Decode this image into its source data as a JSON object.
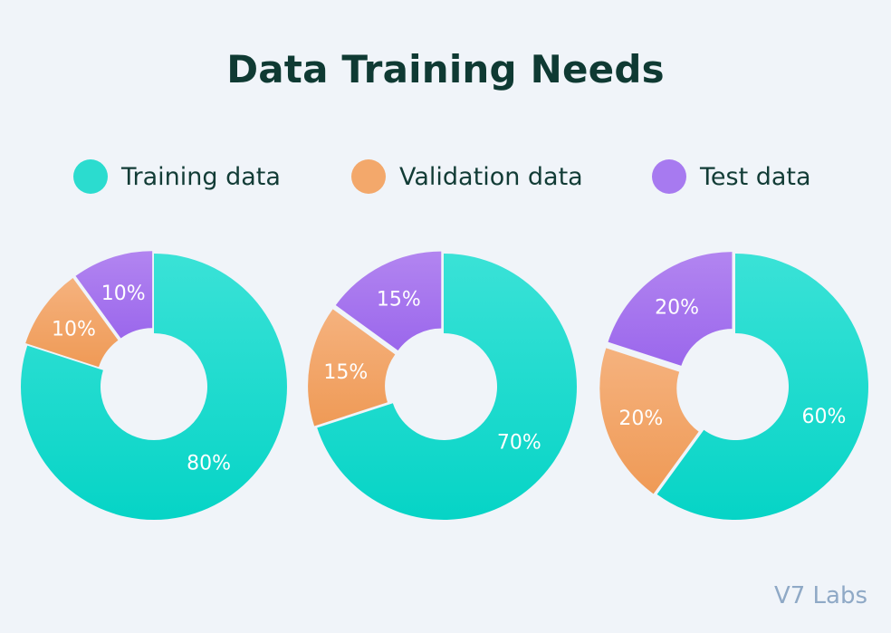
{
  "title": "Data Training Needs",
  "watermark": "V7 Labs",
  "colors": {
    "training": [
      "#3ae2d7",
      "#06d4c6"
    ],
    "validation": [
      "#f5b27e",
      "#ef9a56"
    ],
    "test": [
      "#b285f0",
      "#9b67ec"
    ],
    "background": "#f0f4f9",
    "title": "#0f3a33"
  },
  "legend": [
    {
      "label": "Training data",
      "color": "#2bdccf"
    },
    {
      "label": "Validation data",
      "color": "#f3a86b"
    },
    {
      "label": "Test data",
      "color": "#a77af0"
    }
  ],
  "chart_data": [
    {
      "type": "pie",
      "donut": true,
      "categories": [
        "Training data",
        "Validation data",
        "Test data"
      ],
      "values": [
        80,
        10,
        10
      ],
      "labels": [
        "80%",
        "10%",
        "10%"
      ]
    },
    {
      "type": "pie",
      "donut": true,
      "categories": [
        "Training data",
        "Validation data",
        "Test data"
      ],
      "values": [
        70,
        15,
        15
      ],
      "labels": [
        "70%",
        "15%",
        "15%"
      ]
    },
    {
      "type": "pie",
      "donut": true,
      "categories": [
        "Training data",
        "Validation data",
        "Test data"
      ],
      "values": [
        60,
        20,
        20
      ],
      "labels": [
        "60%",
        "20%",
        "20%"
      ]
    }
  ]
}
